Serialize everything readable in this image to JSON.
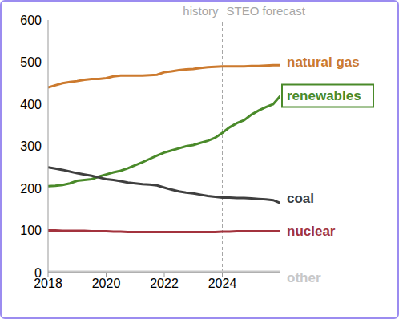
{
  "chart_data": {
    "type": "line",
    "x": [
      2018,
      2018.25,
      2018.5,
      2018.75,
      2019,
      2019.25,
      2019.5,
      2019.75,
      2020,
      2020.25,
      2020.5,
      2020.75,
      2021,
      2021.25,
      2021.5,
      2021.75,
      2022,
      2022.25,
      2022.5,
      2022.75,
      2023,
      2023.25,
      2023.5,
      2023.75,
      2024,
      2024.25,
      2024.5,
      2024.75,
      2025,
      2025.25,
      2025.5,
      2025.75,
      2026
    ],
    "series": [
      {
        "name": "natural gas",
        "color": "#cc7a2e",
        "values": [
          440,
          445,
          450,
          453,
          455,
          458,
          460,
          460,
          462,
          466,
          468,
          468,
          468,
          468,
          469,
          470,
          476,
          478,
          481,
          483,
          484,
          486,
          488,
          489,
          490,
          490,
          490,
          490,
          491,
          491,
          492,
          493,
          493
        ]
      },
      {
        "name": "renewables",
        "color": "#4a8a2a",
        "values": [
          205,
          206,
          208,
          212,
          218,
          220,
          222,
          228,
          233,
          238,
          242,
          248,
          255,
          262,
          270,
          278,
          285,
          290,
          295,
          300,
          303,
          308,
          313,
          320,
          332,
          345,
          355,
          362,
          375,
          385,
          393,
          400,
          420
        ]
      },
      {
        "name": "coal",
        "color": "#3f3f3f",
        "values": [
          250,
          247,
          244,
          240,
          236,
          233,
          230,
          226,
          222,
          220,
          217,
          214,
          212,
          210,
          209,
          207,
          202,
          197,
          193,
          190,
          188,
          185,
          182,
          180,
          178,
          178,
          177,
          177,
          176,
          175,
          174,
          172,
          165
        ]
      },
      {
        "name": "nuclear",
        "color": "#a3333d",
        "values": [
          100,
          100,
          99,
          99,
          99,
          99,
          98,
          98,
          98,
          97,
          97,
          96,
          96,
          96,
          96,
          96,
          96,
          96,
          96,
          96,
          96,
          96,
          96,
          96,
          97,
          97,
          98,
          98,
          98,
          98,
          98,
          98,
          98
        ]
      },
      {
        "name": "other",
        "color": "#c8c8c8",
        "values": [
          2,
          2,
          2,
          2,
          2,
          2,
          2,
          2,
          2,
          2,
          2,
          2,
          2,
          2,
          2,
          2,
          2,
          2,
          2,
          2,
          2,
          2,
          2,
          2,
          2,
          2,
          2,
          2,
          2,
          2,
          2,
          2,
          2
        ]
      }
    ],
    "xlim": [
      2018,
      2026
    ],
    "xticks": [
      2018,
      2020,
      2022,
      2024
    ],
    "ylim": [
      0,
      600
    ],
    "yticks": [
      0,
      100,
      200,
      300,
      400,
      500,
      600
    ],
    "grid": false,
    "forecast_start": 2024,
    "annotations": [
      "history",
      "STEO forecast"
    ]
  }
}
